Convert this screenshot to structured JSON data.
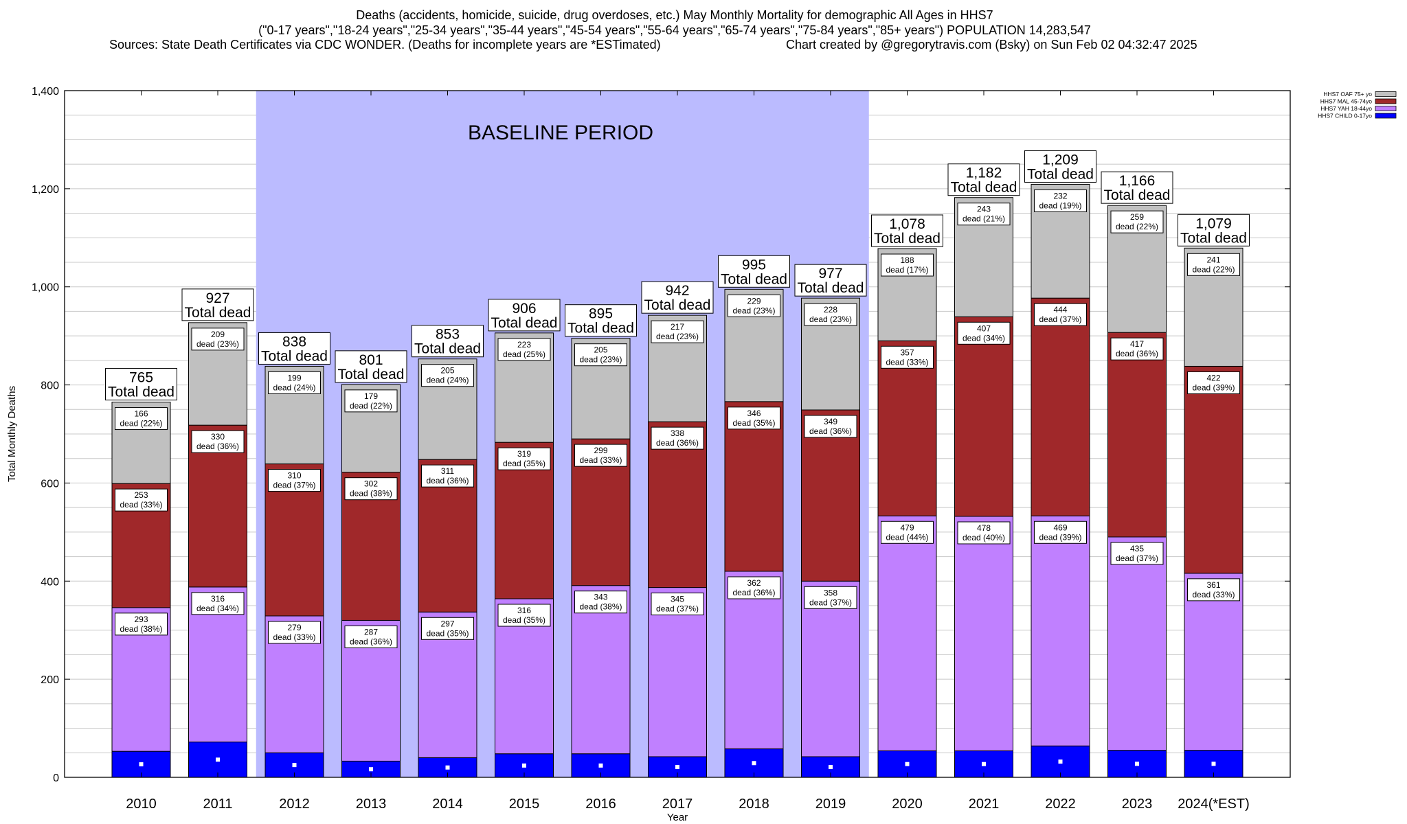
{
  "chart_data": {
    "type": "bar",
    "stacked": true,
    "title": "Deaths (accidents, homicide, suicide, drug overdoses, etc.) May Monthly Mortality for demographic All Ages in HHS7",
    "subtitle": "(\"0-17 years\",\"18-24 years\",\"25-34 years\",\"35-44 years\",\"45-54 years\",\"55-64 years\",\"65-74 years\",\"75-84 years\",\"85+ years\") POPULATION 14,283,547",
    "source": "Sources: State Death Certificates via CDC WONDER. (Deaths for incomplete years are *ESTimated)",
    "credit": "Chart created by @gregorytravis.com (Bsky) on Sun Feb 02 04:32:47 2025",
    "xlabel": "Year",
    "ylabel": "Total Monthly Deaths",
    "ylim": [
      0,
      1400
    ],
    "yticks": [
      "0",
      "200",
      "400",
      "600",
      "800",
      "1,000",
      "1,200",
      "1,400"
    ],
    "grid": true,
    "legend_position": "top-right",
    "categories": [
      "2010",
      "2011",
      "2012",
      "2013",
      "2014",
      "2015",
      "2016",
      "2017",
      "2018",
      "2019",
      "2020",
      "2021",
      "2022",
      "2023",
      "2024(*EST)"
    ],
    "series": [
      {
        "name": "HHS7 CHILD 0-17yo",
        "color": "#0000ff",
        "values": [
          53,
          72,
          50,
          33,
          40,
          48,
          48,
          42,
          58,
          42,
          54,
          54,
          64,
          55,
          55
        ]
      },
      {
        "name": "HHS7 YAH 18-44yo",
        "color": "#c080ff",
        "values": [
          293,
          316,
          279,
          287,
          297,
          316,
          343,
          345,
          362,
          358,
          479,
          478,
          469,
          435,
          361
        ],
        "labels": [
          "dead (38%)",
          "dead (34%)",
          "dead (33%)",
          "dead (36%)",
          "dead (35%)",
          "dead (35%)",
          "dead (38%)",
          "dead (37%)",
          "dead (36%)",
          "dead (37%)",
          "dead (44%)",
          "dead (40%)",
          "dead (39%)",
          "dead (37%)",
          "dead (33%)"
        ]
      },
      {
        "name": "HHS7 MAL 45-74yo",
        "color": "#a0282a",
        "values": [
          253,
          330,
          310,
          302,
          311,
          319,
          299,
          338,
          346,
          349,
          357,
          407,
          444,
          417,
          422
        ],
        "labels": [
          "dead (33%)",
          "dead (36%)",
          "dead (37%)",
          "dead (38%)",
          "dead (36%)",
          "dead (35%)",
          "dead (33%)",
          "dead (36%)",
          "dead (35%)",
          "dead (36%)",
          "dead (33%)",
          "dead (34%)",
          "dead (37%)",
          "dead (36%)",
          "dead (39%)"
        ]
      },
      {
        "name": "HHS7 OAF 75+ yo",
        "color": "#c0c0c0",
        "values": [
          166,
          209,
          199,
          179,
          205,
          223,
          205,
          217,
          229,
          228,
          188,
          243,
          232,
          259,
          241
        ],
        "labels": [
          "dead (22%)",
          "dead (23%)",
          "dead (24%)",
          "dead (22%)",
          "dead (24%)",
          "dead (25%)",
          "dead (23%)",
          "dead (23%)",
          "dead (23%)",
          "dead (23%)",
          "dead (17%)",
          "dead (21%)",
          "dead (19%)",
          "dead (22%)",
          "dead (22%)"
        ]
      }
    ],
    "total_labels": [
      "765",
      "927",
      "838",
      "801",
      "853",
      "906",
      "895",
      "942",
      "995",
      "977",
      "1,078",
      "1,182",
      "1,209",
      "1,166",
      "1,079"
    ],
    "total_caption": "Total dead",
    "annotation": {
      "text": "BASELINE PERIOD",
      "span": [
        2012,
        2019
      ],
      "color": "#bbbbff"
    }
  }
}
